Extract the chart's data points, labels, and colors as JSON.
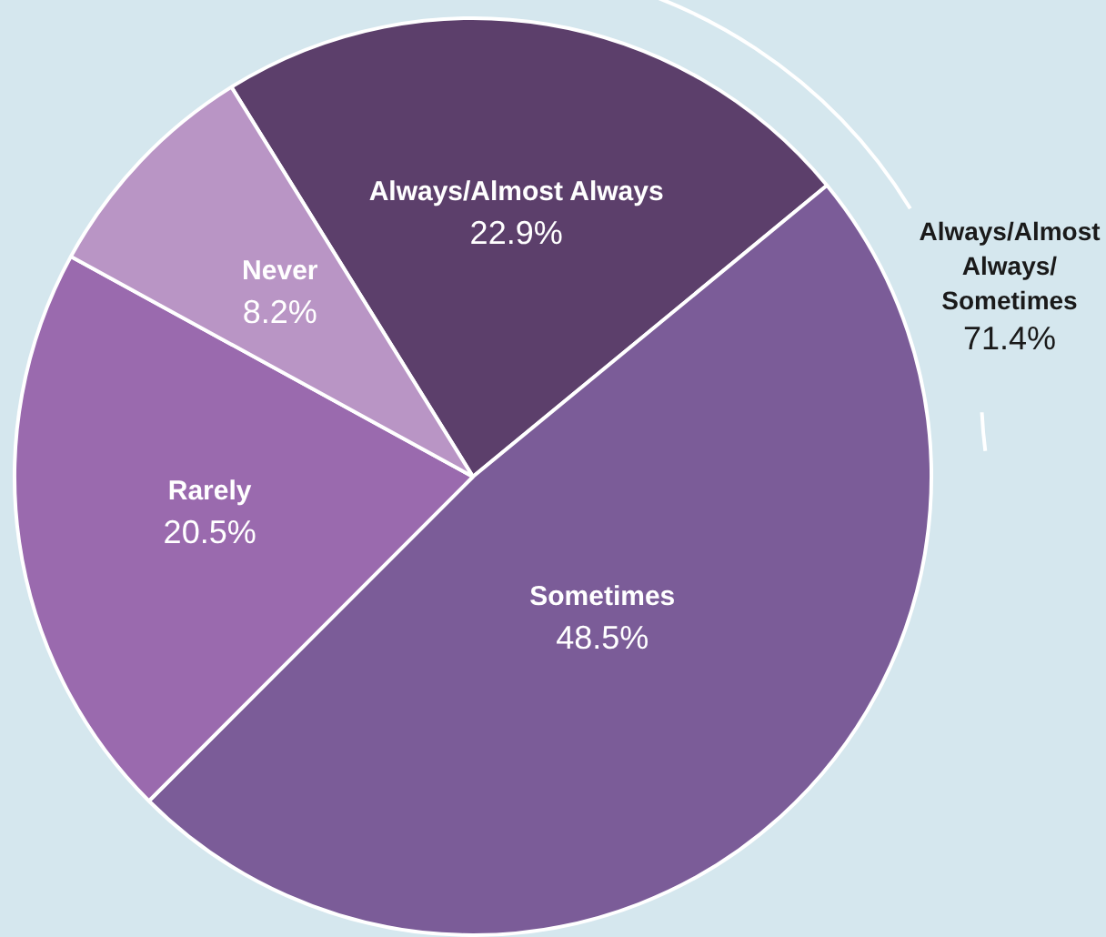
{
  "chart_data": {
    "type": "pie",
    "categories": [
      "Always/Almost Always",
      "Sometimes",
      "Rarely",
      "Never"
    ],
    "values": [
      22.9,
      48.5,
      20.5,
      8.2
    ],
    "colors": [
      "#5c3f6b",
      "#7b5c98",
      "#9a6aae",
      "#b995c5"
    ],
    "value_labels": [
      "22.9%",
      "48.5%",
      "20.5%",
      "8.2%"
    ],
    "legend": false,
    "annotations": [
      "Always/Almost Always/Sometimes",
      "71.4%"
    ]
  }
}
